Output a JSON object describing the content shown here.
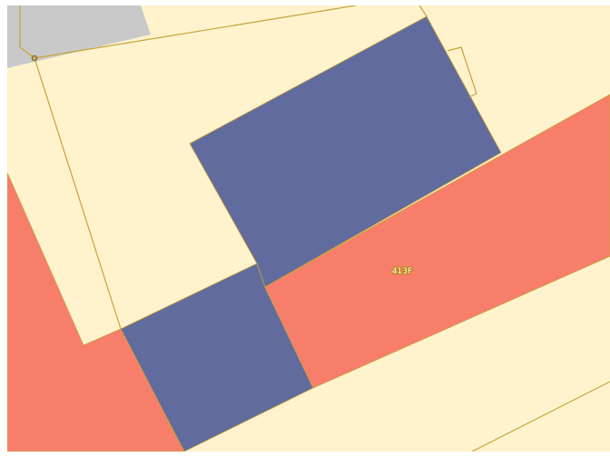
{
  "map": {
    "colors": {
      "background": "#fef3cd",
      "road": "#c9c9c9",
      "building_blue": "#626b9e",
      "building_red": "#f77e6a",
      "parcel_line": "#c8a23a",
      "vertex": "#8a6a2a",
      "label_text": "#ffffff",
      "label_halo": "#b8860b",
      "frame": "#ffffff"
    },
    "labels": {
      "building_413F": "413F"
    }
  }
}
